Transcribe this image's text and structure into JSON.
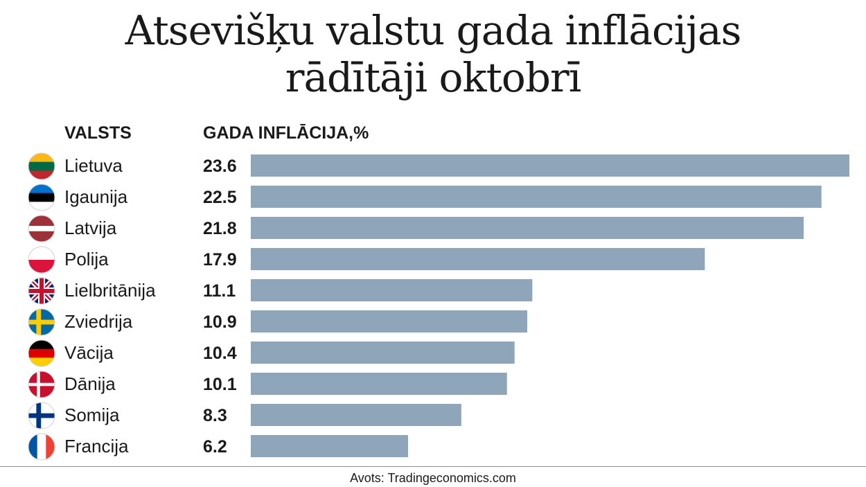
{
  "title_line1": "Atsevišķu valstu gada inflācijas",
  "title_line2": "rādītāji oktobrī",
  "col_country": "VALSTS",
  "col_value": "GADA INFLĀCIJA,%",
  "source": "Avots: Tradingeconomics.com",
  "bar_color": "#8fa6ba",
  "chart_data": {
    "type": "bar",
    "orientation": "horizontal",
    "categories": [
      "Lietuva",
      "Igaunija",
      "Latvija",
      "Polija",
      "Lielbritānija",
      "Zviedrija",
      "Vācija",
      "Dānija",
      "Somija",
      "Francija"
    ],
    "values": [
      23.6,
      22.5,
      21.8,
      17.9,
      11.1,
      10.9,
      10.4,
      10.1,
      8.3,
      6.2
    ],
    "value_labels": [
      "23.6",
      "22.5",
      "21.8",
      "17.9",
      "11.1",
      "10.9",
      "10.4",
      "10.1",
      "8.3",
      "6.2"
    ],
    "flags": [
      "lithuania-flag-icon",
      "estonia-flag-icon",
      "latvia-flag-icon",
      "poland-flag-icon",
      "uk-flag-icon",
      "sweden-flag-icon",
      "germany-flag-icon",
      "denmark-flag-icon",
      "finland-flag-icon",
      "france-flag-icon"
    ],
    "title": "Atsevišķu valstu gada inflācijas rādītāji oktobrī",
    "xlabel": "GADA INFLĀCIJA,%",
    "ylabel": "VALSTS",
    "xlim": [
      0,
      23.6
    ],
    "grid": false,
    "legend": "none"
  }
}
